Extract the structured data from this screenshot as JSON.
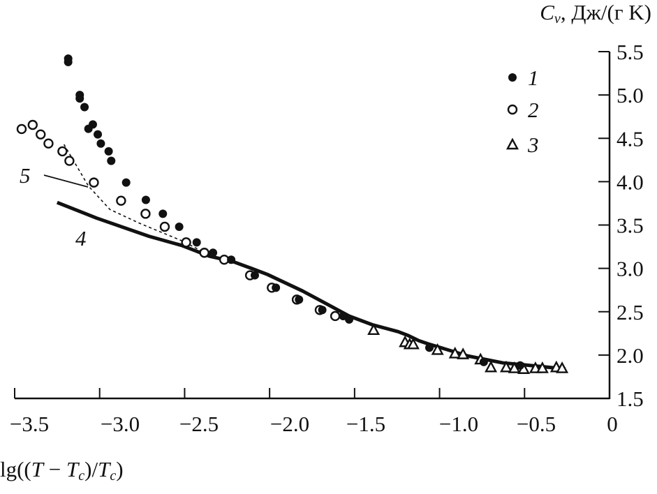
{
  "chart_data": {
    "type": "scatter",
    "title": "",
    "xlabel": "lg((T − Tc)/Tc)",
    "xlabel_parts": {
      "prefix": "lg((",
      "T": "T",
      "minus": " − ",
      "Tc": "T",
      "c": "c",
      "mid": ")/",
      "Tc2": "T",
      "c2": "c",
      "suffix": ")"
    },
    "ylabel": "Cv, Дж/(г K)",
    "ylabel_parts": {
      "C": "C",
      "v": "v",
      "units": ", Дж/(г K)"
    },
    "xlim": [
      -3.5,
      0
    ],
    "ylim": [
      1.5,
      5.5
    ],
    "xticks": [
      -3.5,
      -3.0,
      -2.5,
      -2.0,
      -1.5,
      -1.0,
      -0.5,
      0
    ],
    "xtick_labels": [
      "−3.5",
      "−3.0",
      "−2.5",
      "−2.0",
      "−1.5",
      "−1.0",
      "−0.5",
      "0"
    ],
    "yticks": [
      1.5,
      2.0,
      2.5,
      3.0,
      3.5,
      4.0,
      4.5,
      5.0,
      5.5
    ],
    "ytick_labels": [
      "1.5",
      "2.0",
      "2.5",
      "3.0",
      "3.5",
      "4.0",
      "4.5",
      "5.0",
      "5.5"
    ],
    "y_axis_side": "right",
    "grid": false,
    "legend_placement": "top-right",
    "series": [
      {
        "name": "1",
        "marker": "filled-circle",
        "points": [
          [
            -3.185,
            5.42
          ],
          [
            -3.185,
            5.38
          ],
          [
            -3.117,
            5.0
          ],
          [
            -3.117,
            4.96
          ],
          [
            -3.089,
            4.86
          ],
          [
            -3.04,
            4.66
          ],
          [
            -3.066,
            4.61
          ],
          [
            -3.011,
            4.545
          ],
          [
            -2.993,
            4.44
          ],
          [
            -2.947,
            4.35
          ],
          [
            -2.932,
            4.24
          ],
          [
            -2.844,
            3.99
          ],
          [
            -2.728,
            3.79
          ],
          [
            -2.628,
            3.63
          ],
          [
            -2.532,
            3.48
          ],
          [
            -2.429,
            3.3
          ],
          [
            -2.333,
            3.18
          ],
          [
            -2.226,
            3.1
          ],
          [
            -2.087,
            2.92
          ],
          [
            -1.963,
            2.777
          ],
          [
            -1.827,
            2.64
          ],
          [
            -1.69,
            2.52
          ],
          [
            -1.567,
            2.45
          ],
          [
            -1.532,
            2.41
          ],
          [
            -1.06,
            2.085
          ],
          [
            -0.74,
            1.92
          ],
          [
            -0.526,
            1.88
          ]
        ]
      },
      {
        "name": "2",
        "marker": "open-circle",
        "points": [
          [
            -3.459,
            4.607
          ],
          [
            -3.394,
            4.655
          ],
          [
            -3.347,
            4.545
          ],
          [
            -3.301,
            4.44
          ],
          [
            -3.219,
            4.35
          ],
          [
            -3.178,
            4.24
          ],
          [
            -3.034,
            3.99
          ],
          [
            -2.874,
            3.78
          ],
          [
            -2.73,
            3.63
          ],
          [
            -2.617,
            3.48
          ],
          [
            -2.491,
            3.3
          ],
          [
            -2.384,
            3.18
          ],
          [
            -2.267,
            3.1
          ],
          [
            -2.115,
            2.92
          ],
          [
            -1.987,
            2.777
          ],
          [
            -1.84,
            2.64
          ],
          [
            -1.705,
            2.52
          ],
          [
            -1.614,
            2.45
          ]
        ]
      },
      {
        "name": "3",
        "marker": "open-triangle",
        "points": [
          [
            -1.388,
            2.29
          ],
          [
            -1.203,
            2.15
          ],
          [
            -1.176,
            2.125
          ],
          [
            -1.155,
            2.125
          ],
          [
            -1.012,
            2.06
          ],
          [
            -0.909,
            2.02
          ],
          [
            -0.862,
            2.01
          ],
          [
            -0.759,
            1.95
          ],
          [
            -0.698,
            1.86
          ],
          [
            -0.608,
            1.86
          ],
          [
            -0.56,
            1.85
          ],
          [
            -0.505,
            1.84
          ],
          [
            -0.436,
            1.85
          ],
          [
            -0.395,
            1.85
          ],
          [
            -0.313,
            1.86
          ],
          [
            -0.279,
            1.85
          ]
        ]
      },
      {
        "name": "4",
        "marker": "thick-solid-line",
        "points": [
          [
            -3.25,
            3.76
          ],
          [
            -3.018,
            3.58
          ],
          [
            -2.71,
            3.37
          ],
          [
            -2.518,
            3.265
          ],
          [
            -2.354,
            3.14
          ],
          [
            -2.218,
            3.08
          ],
          [
            -2.107,
            3.0
          ],
          [
            -2.013,
            2.93
          ],
          [
            -1.807,
            2.74
          ],
          [
            -1.669,
            2.595
          ],
          [
            -1.532,
            2.45
          ],
          [
            -1.396,
            2.35
          ],
          [
            -1.244,
            2.27
          ],
          [
            -1.19,
            2.23
          ],
          [
            -1.121,
            2.165
          ],
          [
            -1.068,
            2.13
          ],
          [
            -0.834,
            1.99
          ],
          [
            -0.628,
            1.91
          ],
          [
            -0.493,
            1.885
          ],
          [
            -0.26,
            1.84
          ]
        ]
      },
      {
        "name": "5",
        "marker": "dashed-line",
        "points": [
          [
            -3.21,
            4.43
          ],
          [
            -3.066,
            3.95
          ],
          [
            -2.94,
            3.68
          ],
          [
            -2.765,
            3.52
          ],
          [
            -2.518,
            3.32
          ],
          [
            -2.4,
            3.2
          ]
        ]
      }
    ],
    "legend": [
      {
        "label": "1",
        "marker": "filled-circle"
      },
      {
        "label": "2",
        "marker": "open-circle"
      },
      {
        "label": "3",
        "marker": "open-triangle"
      }
    ],
    "annotations": [
      {
        "text": "5",
        "target_series": "5"
      },
      {
        "text": "4",
        "target_series": "4"
      }
    ],
    "colors": {
      "ink": "#111111",
      "background": "#ffffff"
    }
  }
}
